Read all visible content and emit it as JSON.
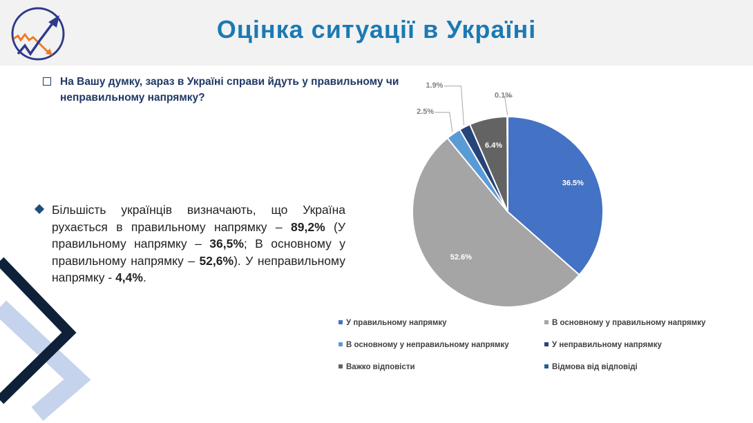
{
  "header": {
    "title": "Оцінка ситуації в Україні",
    "logo": "growth-chart-logo"
  },
  "question": "На Вашу думку, зараз в Україні справи йдуть у правильному чи неправильному напрямку?",
  "summary": {
    "p1": "Більшість українців визначають, що Україна рухається в правильному напрямку – ",
    "b1": "89,2%",
    "p2": " (У правильному напрямку – ",
    "b2": "36,5%",
    "p3": "; В основному у правильному напрямку – ",
    "b3": "52,6%",
    "p4": "). У неправильному напрямку  - ",
    "b4": "4,4%",
    "p5": "."
  },
  "chart_data": {
    "type": "pie",
    "start": "top, clockwise",
    "slices": [
      {
        "label": "У правильному напрямку",
        "value": 36.5,
        "display": "36.5%",
        "color": "#4472c4"
      },
      {
        "label": "В основному у правильному напрямку",
        "value": 52.6,
        "display": "52.6%",
        "color": "#a5a5a5"
      },
      {
        "label": "В основному у неправильному напрямку",
        "value": 2.5,
        "display": "2.5%",
        "color": "#5b9bd5"
      },
      {
        "label": "У неправильному напрямку",
        "value": 1.9,
        "display": "1.9%",
        "color": "#264478"
      },
      {
        "label": "Важко відповісти",
        "value": 6.4,
        "display": "6.4%",
        "color": "#636363"
      },
      {
        "label": "Відмова від відповіді",
        "value": 0.1,
        "display": "0.1%",
        "color": "#255e91"
      }
    ],
    "legend_position": "bottom"
  }
}
